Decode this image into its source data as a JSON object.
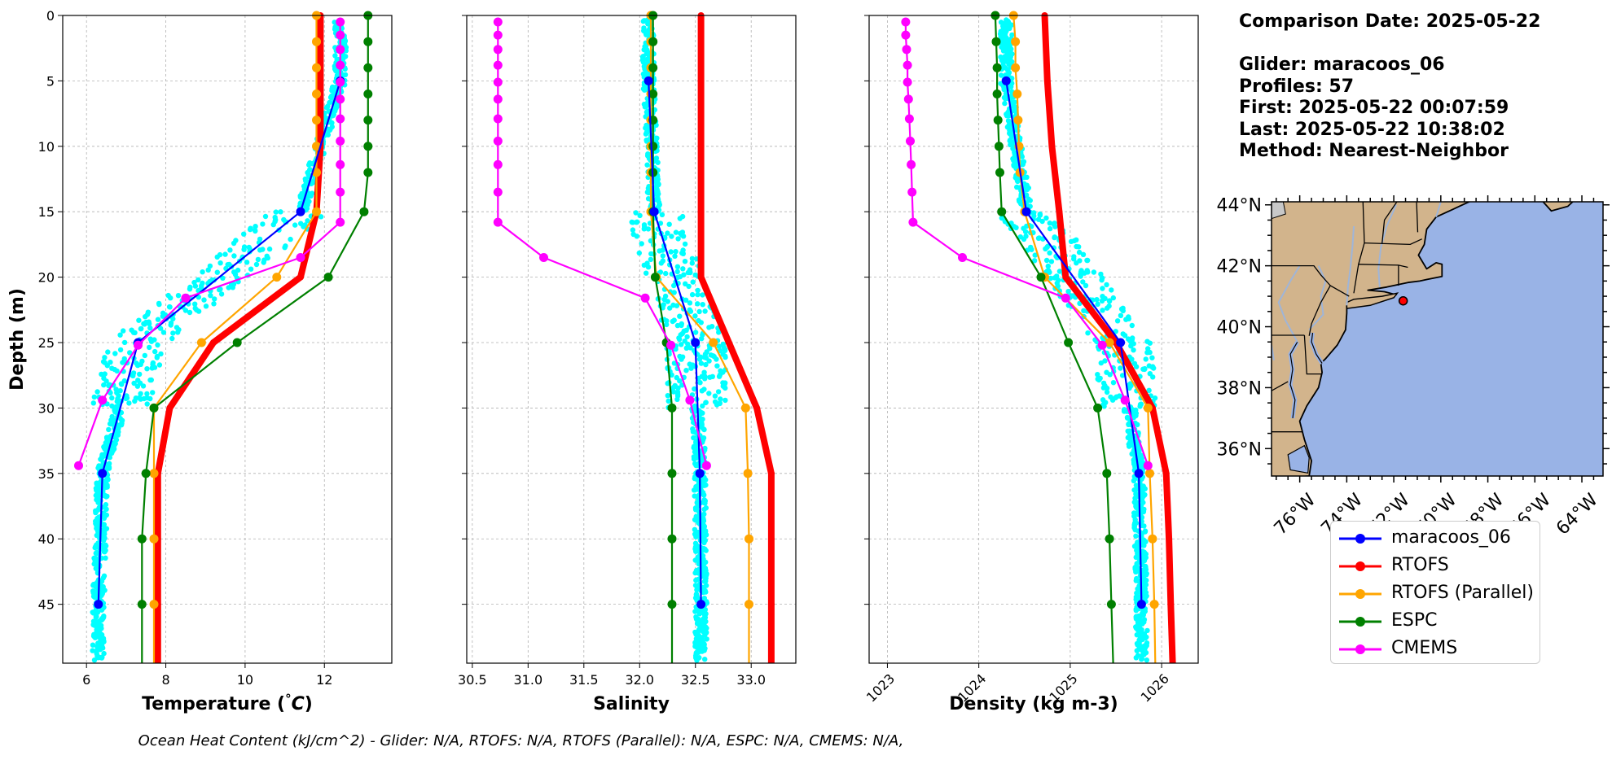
{
  "info": {
    "comparison_date": "Comparison Date: 2025-05-22",
    "glider": "Glider: maracoos_06",
    "profiles": "Profiles: 57",
    "first": "First: 2025-05-22 00:07:59",
    "last": "Last: 2025-05-22 10:38:02",
    "method": "Method: Nearest-Neighbor"
  },
  "footer": "Ocean Heat Content (kJ/cm^2) - Glider: N/A,  RTOFS: N/A,  RTOFS (Parallel): N/A,  ESPC: N/A,  CMEMS: N/A,",
  "legend": [
    {
      "name": "maracoos_06",
      "color": "#0000ff"
    },
    {
      "name": "RTOFS",
      "color": "#ff0000"
    },
    {
      "name": "RTOFS (Parallel)",
      "color": "#ffa500"
    },
    {
      "name": "ESPC",
      "color": "#008000"
    },
    {
      "name": "CMEMS",
      "color": "#ff00ff"
    }
  ],
  "colors": {
    "glider_raw": "#00ffff",
    "land": "#d2b48c",
    "ocean": "#99b3e6",
    "glider_location": "#ff0000"
  },
  "chart_data": [
    {
      "type": "line",
      "xlabel": "Temperature (°C)",
      "ylabel": "Depth (m)",
      "xlim": [
        5.4,
        13.7
      ],
      "ylim": [
        49.5,
        0
      ],
      "xticks": [
        6,
        8,
        10,
        12
      ],
      "yticks": [
        0,
        5,
        10,
        15,
        20,
        25,
        30,
        35,
        40,
        45
      ],
      "grid": true,
      "series": [
        {
          "name": "maracoos_06",
          "depth": [
            5,
            15,
            25,
            35,
            45
          ],
          "values": [
            12.4,
            11.4,
            7.3,
            6.4,
            6.3
          ]
        },
        {
          "name": "RTOFS",
          "depth": [
            0,
            5,
            10,
            15,
            20,
            25,
            30,
            35,
            40,
            45,
            49.5
          ],
          "values": [
            11.9,
            11.9,
            11.9,
            11.8,
            11.4,
            9.2,
            8.1,
            7.8,
            7.8,
            7.8,
            7.8
          ]
        },
        {
          "name": "RTOFS (Parallel)",
          "depth": [
            0,
            2,
            4,
            6,
            8,
            10,
            12,
            15,
            20,
            25,
            30,
            35,
            40,
            45,
            49.5
          ],
          "values": [
            11.8,
            11.8,
            11.8,
            11.8,
            11.8,
            11.8,
            11.8,
            11.8,
            10.8,
            8.9,
            7.7,
            7.7,
            7.7,
            7.7,
            7.7
          ]
        },
        {
          "name": "ESPC",
          "depth": [
            0,
            2,
            4,
            6,
            8,
            10,
            12,
            15,
            20,
            25,
            30,
            35,
            40,
            45,
            49.5
          ],
          "values": [
            13.1,
            13.1,
            13.1,
            13.1,
            13.1,
            13.1,
            13.1,
            13.0,
            12.1,
            9.8,
            7.7,
            7.5,
            7.4,
            7.4,
            7.4
          ]
        },
        {
          "name": "CMEMS",
          "depth": [
            0.5,
            1.5,
            2.6,
            3.8,
            5.1,
            6.4,
            7.9,
            9.6,
            11.4,
            13.5,
            15.8,
            18.5,
            21.6,
            25.2,
            29.4,
            34.4
          ],
          "values": [
            12.4,
            12.4,
            12.4,
            12.4,
            12.4,
            12.4,
            12.4,
            12.4,
            12.4,
            12.4,
            12.4,
            11.4,
            8.5,
            7.3,
            6.4,
            5.8
          ]
        }
      ]
    },
    {
      "type": "line",
      "xlabel": "Salinity",
      "xlim": [
        30.45,
        33.4
      ],
      "ylim": [
        49.5,
        0
      ],
      "xticks": [
        30.5,
        31.0,
        31.5,
        32.0,
        32.5,
        33.0
      ],
      "yticks": [
        0,
        5,
        10,
        15,
        20,
        25,
        30,
        35,
        40,
        45
      ],
      "grid": true,
      "series": [
        {
          "name": "maracoos_06",
          "depth": [
            5,
            15,
            25,
            35,
            45
          ],
          "values": [
            32.08,
            32.13,
            32.5,
            32.54,
            32.55
          ]
        },
        {
          "name": "RTOFS",
          "depth": [
            0,
            5,
            10,
            15,
            20,
            25,
            30,
            35,
            40,
            45,
            49.5
          ],
          "values": [
            32.55,
            32.55,
            32.55,
            32.55,
            32.55,
            32.8,
            33.05,
            33.18,
            33.18,
            33.18,
            33.18
          ]
        },
        {
          "name": "RTOFS (Parallel)",
          "depth": [
            0,
            2,
            4,
            6,
            8,
            10,
            12,
            15,
            20,
            25,
            30,
            35,
            40,
            45,
            49.5
          ],
          "values": [
            32.1,
            32.1,
            32.1,
            32.1,
            32.1,
            32.1,
            32.1,
            32.1,
            32.15,
            32.66,
            32.95,
            32.97,
            32.98,
            32.98,
            32.98
          ]
        },
        {
          "name": "ESPC",
          "depth": [
            0,
            2,
            4,
            6,
            8,
            10,
            12,
            15,
            20,
            25,
            30,
            35,
            40,
            45,
            49.5
          ],
          "values": [
            32.12,
            32.12,
            32.12,
            32.12,
            32.12,
            32.12,
            32.12,
            32.12,
            32.14,
            32.24,
            32.29,
            32.29,
            32.29,
            32.29,
            32.29
          ]
        },
        {
          "name": "CMEMS",
          "depth": [
            0.5,
            1.5,
            2.6,
            3.8,
            5.1,
            6.4,
            7.9,
            9.6,
            11.4,
            13.5,
            15.8,
            18.5,
            21.6,
            25.2,
            29.4,
            34.4
          ],
          "values": [
            30.73,
            30.73,
            30.73,
            30.73,
            30.73,
            30.73,
            30.73,
            30.73,
            30.73,
            30.73,
            30.73,
            31.14,
            32.05,
            32.28,
            32.45,
            32.6
          ]
        }
      ]
    },
    {
      "type": "line",
      "xlabel": "Density (kg m-3)",
      "xlim": [
        1022.8,
        1026.4
      ],
      "ylim": [
        49.5,
        0
      ],
      "xticks": [
        1023,
        1024,
        1025,
        1026
      ],
      "yticks": [
        0,
        5,
        10,
        15,
        20,
        25,
        30,
        35,
        40,
        45
      ],
      "grid": true,
      "series": [
        {
          "name": "maracoos_06",
          "depth": [
            5,
            15,
            25,
            35,
            45
          ],
          "values": [
            1024.3,
            1024.52,
            1025.55,
            1025.75,
            1025.78
          ]
        },
        {
          "name": "RTOFS",
          "depth": [
            0,
            5,
            10,
            15,
            20,
            25,
            30,
            35,
            40,
            45,
            49.5
          ],
          "values": [
            1024.72,
            1024.75,
            1024.8,
            1024.88,
            1024.95,
            1025.5,
            1025.9,
            1026.05,
            1026.08,
            1026.1,
            1026.12
          ]
        },
        {
          "name": "RTOFS (Parallel)",
          "depth": [
            0,
            2,
            4,
            6,
            8,
            10,
            12,
            15,
            20,
            25,
            30,
            35,
            40,
            45,
            49.5
          ],
          "values": [
            1024.38,
            1024.4,
            1024.4,
            1024.42,
            1024.43,
            1024.44,
            1024.45,
            1024.5,
            1024.72,
            1025.43,
            1025.85,
            1025.87,
            1025.9,
            1025.92,
            1025.93
          ]
        },
        {
          "name": "ESPC",
          "depth": [
            0,
            2,
            4,
            6,
            8,
            10,
            12,
            15,
            20,
            25,
            30,
            35,
            40,
            45,
            49.5
          ],
          "values": [
            1024.18,
            1024.19,
            1024.2,
            1024.2,
            1024.21,
            1024.22,
            1024.23,
            1024.25,
            1024.68,
            1024.98,
            1025.3,
            1025.4,
            1025.43,
            1025.45,
            1025.47
          ]
        },
        {
          "name": "CMEMS",
          "depth": [
            0.5,
            1.5,
            2.6,
            3.8,
            5.1,
            6.4,
            7.9,
            9.6,
            11.4,
            13.5,
            15.8,
            18.5,
            21.6,
            25.2,
            29.4,
            34.4
          ],
          "values": [
            1023.2,
            1023.2,
            1023.21,
            1023.22,
            1023.22,
            1023.23,
            1023.24,
            1023.25,
            1023.26,
            1023.27,
            1023.28,
            1023.82,
            1024.95,
            1025.35,
            1025.6,
            1025.85
          ]
        }
      ]
    },
    {
      "type": "map",
      "lon_range": [
        -77.2,
        -63.1
      ],
      "lat_range": [
        35.1,
        44.1
      ],
      "xticks": [
        -76,
        -74,
        -72,
        -70,
        -68,
        -66,
        -64
      ],
      "xtick_labels": [
        "76°W",
        "74°W",
        "72°W",
        "70°W",
        "68°W",
        "66°W",
        "64°W"
      ],
      "yticks": [
        36,
        38,
        40,
        42,
        44
      ],
      "ytick_labels": [
        "36°N",
        "38°N",
        "40°N",
        "42°N",
        "44°N"
      ],
      "glider_location": {
        "lon": -71.6,
        "lat": 40.85
      }
    }
  ]
}
